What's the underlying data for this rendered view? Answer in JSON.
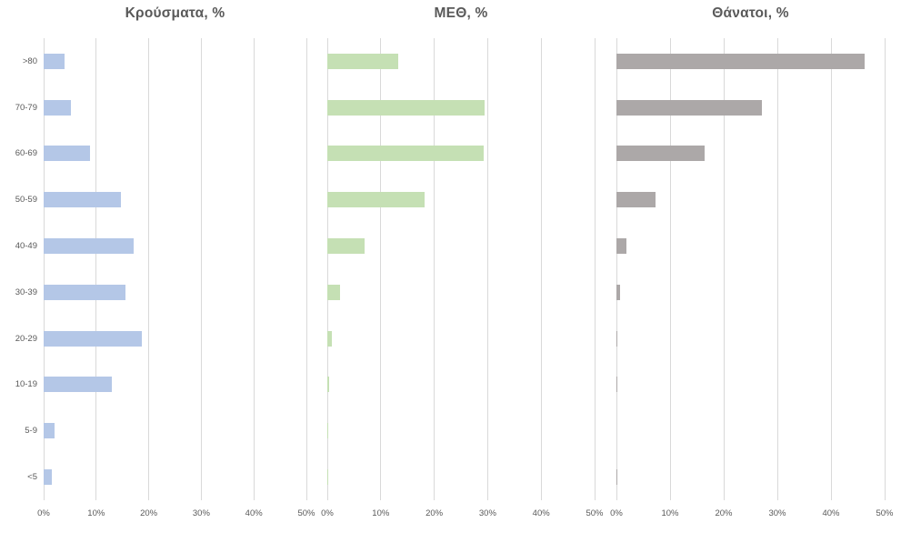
{
  "page": {
    "background": "#ffffff",
    "description": "Three horizontal bar charts of COVID-19 distribution by age group"
  },
  "styles": {
    "grid_color": "#d9d9d9",
    "text_color": "#595959",
    "title_color": "#595959"
  },
  "chart_data": [
    {
      "type": "bar",
      "orientation": "horizontal",
      "title": "Κρούσματα, %",
      "categories": [
        ">80",
        "70-79",
        "60-69",
        "50-59",
        "40-49",
        "30-39",
        "20-29",
        "10-19",
        "5-9",
        "<5"
      ],
      "values": [
        4.0,
        5.2,
        8.8,
        14.7,
        17.2,
        15.5,
        18.6,
        12.9,
        2.0,
        1.5
      ],
      "bar_color": "#b4c7e7",
      "xlim": [
        0,
        50
      ],
      "tick_values": [
        0,
        10,
        20,
        30,
        40,
        50
      ],
      "tick_labels": [
        "0%",
        "10%",
        "20%",
        "30%",
        "40%",
        "50%"
      ],
      "grid": true,
      "legend": "none",
      "show_category_labels": true
    },
    {
      "type": "bar",
      "orientation": "horizontal",
      "title": "ΜΕΘ, %",
      "categories": [
        ">80",
        "70-79",
        "60-69",
        "50-59",
        "40-49",
        "30-39",
        "20-29",
        "10-19",
        "5-9",
        "<5"
      ],
      "values": [
        13.2,
        29.5,
        29.3,
        18.2,
        6.9,
        2.4,
        0.9,
        0.4,
        0.1,
        0.1
      ],
      "bar_color": "#c5e0b4",
      "xlim": [
        0,
        50
      ],
      "tick_values": [
        0,
        10,
        20,
        30,
        40,
        50
      ],
      "tick_labels": [
        "0%",
        "10%",
        "20%",
        "30%",
        "40%",
        "50%"
      ],
      "grid": true,
      "legend": "none",
      "show_category_labels": false
    },
    {
      "type": "bar",
      "orientation": "horizontal",
      "title": "Θάνατοι, %",
      "categories": [
        ">80",
        "70-79",
        "60-69",
        "50-59",
        "40-49",
        "30-39",
        "20-29",
        "10-19",
        "5-9",
        "<5"
      ],
      "values": [
        46.3,
        27.1,
        16.4,
        7.3,
        1.9,
        0.6,
        0.2,
        0.2,
        0.0,
        0.2
      ],
      "bar_color": "#aca8a8",
      "xlim": [
        0,
        50
      ],
      "tick_values": [
        0,
        10,
        20,
        30,
        40,
        50
      ],
      "tick_labels": [
        "0%",
        "10%",
        "20%",
        "30%",
        "40%",
        "50%"
      ],
      "grid": true,
      "legend": "none",
      "show_category_labels": false
    }
  ]
}
